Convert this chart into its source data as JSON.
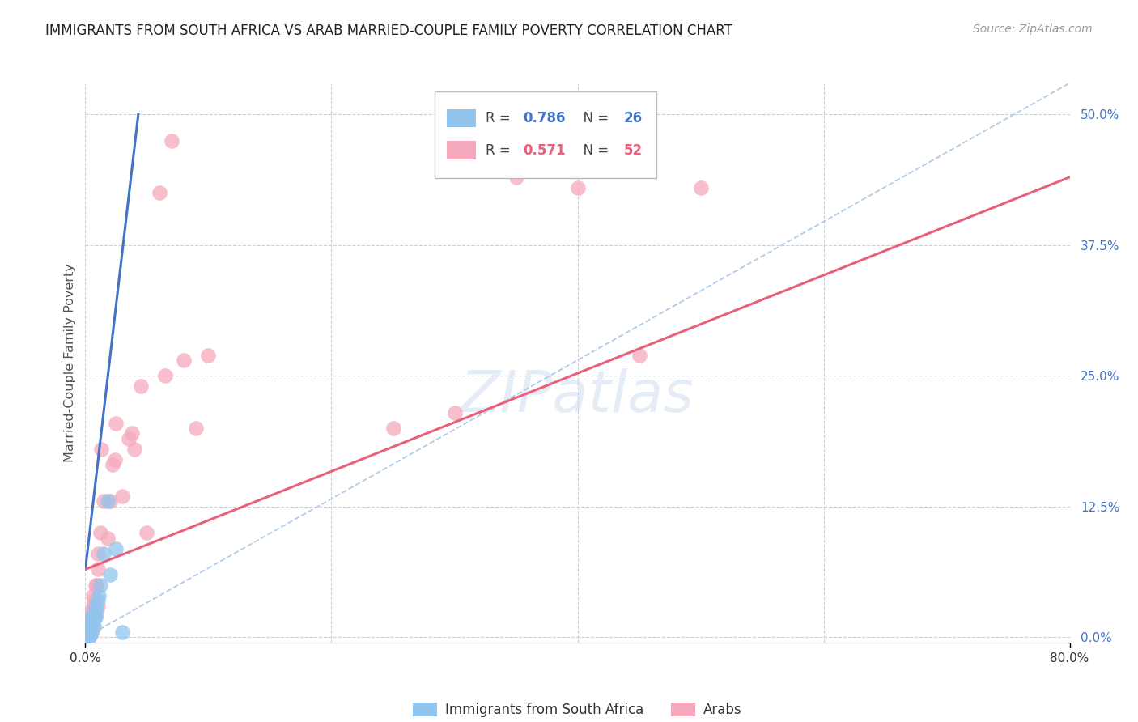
{
  "title": "IMMIGRANTS FROM SOUTH AFRICA VS ARAB MARRIED-COUPLE FAMILY POVERTY CORRELATION CHART",
  "source": "Source: ZipAtlas.com",
  "ylabel_label": "Married-Couple Family Poverty",
  "legend_label1": "Immigrants from South Africa",
  "legend_label2": "Arabs",
  "r1": "0.786",
  "n1": "26",
  "r2": "0.571",
  "n2": "52",
  "color_blue": "#92C5EE",
  "color_pink": "#F5A8BC",
  "color_blue_line": "#4472C4",
  "color_pink_line": "#E8607A",
  "color_dashed": "#B0CCE8",
  "background": "#FFFFFF",
  "grid_color": "#D0D0D0",
  "title_color": "#222222",
  "axis_label_color": "#555555",
  "tick_color_right": "#4472C4",
  "blue_points_x": [
    0.001,
    0.002,
    0.003,
    0.003,
    0.003,
    0.004,
    0.004,
    0.004,
    0.005,
    0.005,
    0.005,
    0.006,
    0.006,
    0.007,
    0.007,
    0.008,
    0.008,
    0.009,
    0.01,
    0.011,
    0.012,
    0.015,
    0.018,
    0.02,
    0.025,
    0.03
  ],
  "blue_points_y": [
    0.0,
    0.002,
    0.0,
    0.005,
    0.01,
    0.003,
    0.01,
    0.015,
    0.005,
    0.015,
    0.02,
    0.015,
    0.02,
    0.01,
    0.02,
    0.02,
    0.03,
    0.025,
    0.035,
    0.04,
    0.05,
    0.08,
    0.13,
    0.06,
    0.085,
    0.005
  ],
  "pink_points_x": [
    0.001,
    0.001,
    0.001,
    0.002,
    0.002,
    0.002,
    0.003,
    0.003,
    0.003,
    0.004,
    0.004,
    0.005,
    0.005,
    0.005,
    0.006,
    0.006,
    0.006,
    0.006,
    0.007,
    0.007,
    0.008,
    0.008,
    0.009,
    0.01,
    0.01,
    0.01,
    0.012,
    0.013,
    0.015,
    0.018,
    0.02,
    0.022,
    0.024,
    0.025,
    0.03,
    0.035,
    0.038,
    0.04,
    0.045,
    0.05,
    0.06,
    0.065,
    0.07,
    0.08,
    0.09,
    0.1,
    0.25,
    0.3,
    0.35,
    0.4,
    0.45,
    0.5
  ],
  "pink_points_y": [
    0.0,
    0.005,
    0.01,
    0.002,
    0.01,
    0.02,
    0.0,
    0.01,
    0.02,
    0.005,
    0.015,
    0.005,
    0.015,
    0.025,
    0.01,
    0.02,
    0.03,
    0.04,
    0.025,
    0.035,
    0.02,
    0.05,
    0.05,
    0.065,
    0.03,
    0.08,
    0.1,
    0.18,
    0.13,
    0.095,
    0.13,
    0.165,
    0.17,
    0.205,
    0.135,
    0.19,
    0.195,
    0.18,
    0.24,
    0.1,
    0.425,
    0.25,
    0.475,
    0.265,
    0.2,
    0.27,
    0.2,
    0.215,
    0.44,
    0.43,
    0.27,
    0.43
  ],
  "xlim": [
    0.0,
    0.8
  ],
  "ylim": [
    -0.005,
    0.53
  ],
  "blue_line_x0": 0.0,
  "blue_line_x1": 0.043,
  "blue_line_y0": 0.065,
  "blue_line_y1": 0.5,
  "pink_line_x0": 0.0,
  "pink_line_x1": 0.8,
  "pink_line_y0": 0.065,
  "pink_line_y1": 0.44,
  "dash_line_x0": 0.0,
  "dash_line_x1": 0.8,
  "dash_line_y0": 0.0,
  "dash_line_y1": 0.53,
  "yticks": [
    0.0,
    0.125,
    0.25,
    0.375,
    0.5
  ],
  "ytick_labels": [
    "0.0%",
    "12.5%",
    "25.0%",
    "37.5%",
    "50.0%"
  ],
  "xtick_labels_pos": [
    0.0,
    0.8
  ],
  "xtick_labels": [
    "0.0%",
    "80.0%"
  ]
}
